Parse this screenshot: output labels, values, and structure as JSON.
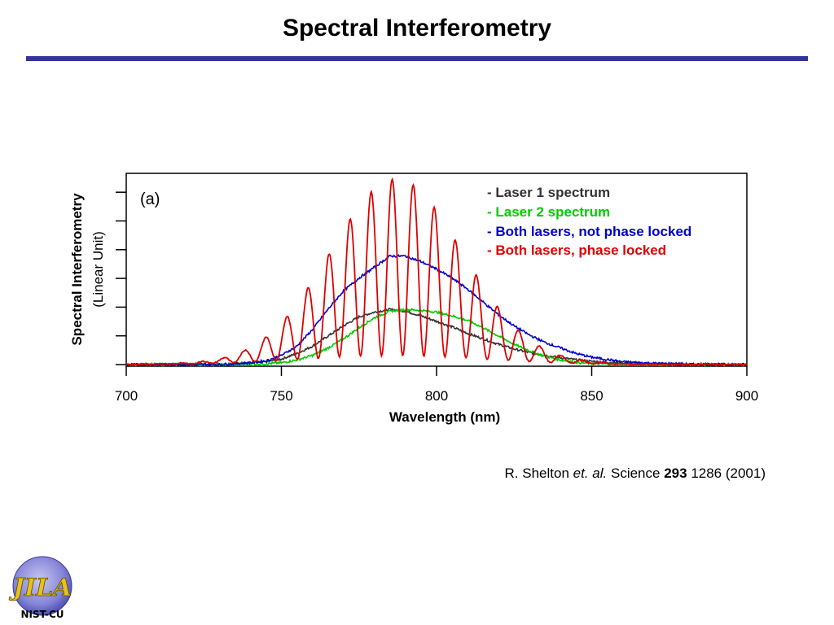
{
  "slide": {
    "title": "Spectral Interferometry",
    "accent_color": "#333399"
  },
  "chart_data": {
    "type": "line",
    "panel_label": "(a)",
    "xlabel": "Wavelength (nm)",
    "ylabel_main": "Spectral Interferometry",
    "ylabel_sub": "(Linear Unit)",
    "xlim": [
      700,
      900
    ],
    "ylim": [
      0,
      1
    ],
    "x_ticks": [
      700,
      750,
      800,
      850,
      900
    ],
    "grid": false,
    "legend_position": "top-right",
    "series": [
      {
        "name": "- Laser 1 spectrum",
        "color": "#333333",
        "x": [
          700,
          720,
          735,
          745,
          750,
          755,
          760,
          765,
          770,
          775,
          780,
          785,
          790,
          795,
          800,
          805,
          810,
          815,
          820,
          825,
          830,
          835,
          840,
          845,
          850,
          860,
          870,
          880,
          900
        ],
        "y": [
          0.0,
          0.0,
          0.005,
          0.015,
          0.03,
          0.06,
          0.1,
          0.155,
          0.21,
          0.26,
          0.285,
          0.3,
          0.29,
          0.265,
          0.235,
          0.205,
          0.17,
          0.14,
          0.11,
          0.085,
          0.065,
          0.05,
          0.037,
          0.026,
          0.018,
          0.008,
          0.004,
          0.002,
          0.0
        ]
      },
      {
        "name": "- Laser 2 spectrum",
        "color": "#00cc00",
        "x": [
          700,
          730,
          745,
          750,
          755,
          760,
          765,
          770,
          775,
          780,
          785,
          790,
          795,
          800,
          805,
          810,
          815,
          820,
          825,
          830,
          835,
          840,
          845,
          850,
          860,
          870,
          880,
          900
        ],
        "y": [
          0.0,
          0.0,
          0.005,
          0.01,
          0.025,
          0.05,
          0.09,
          0.14,
          0.2,
          0.255,
          0.29,
          0.3,
          0.295,
          0.285,
          0.265,
          0.24,
          0.2,
          0.155,
          0.11,
          0.075,
          0.045,
          0.025,
          0.012,
          0.005,
          0.002,
          0.0,
          0.0,
          0.0
        ]
      },
      {
        "name": "- Both lasers, not phase locked",
        "color": "#0000cc",
        "x": [
          700,
          730,
          740,
          745,
          750,
          755,
          760,
          765,
          770,
          775,
          780,
          785,
          790,
          795,
          800,
          805,
          810,
          815,
          820,
          825,
          830,
          835,
          840,
          845,
          850,
          860,
          870,
          880,
          900
        ],
        "y": [
          0.0,
          0.0,
          0.01,
          0.02,
          0.05,
          0.1,
          0.19,
          0.3,
          0.4,
          0.47,
          0.53,
          0.59,
          0.59,
          0.56,
          0.52,
          0.47,
          0.41,
          0.34,
          0.27,
          0.21,
          0.16,
          0.12,
          0.09,
          0.06,
          0.04,
          0.015,
          0.007,
          0.002,
          0.0
        ]
      },
      {
        "name": "- Both lasers, phase locked",
        "color": "#dd0000",
        "fringe_period_nm": 6.8,
        "fringe_center_nm": 787,
        "fringe_envelope_sigma_nm": 21,
        "fringe_peak_height": 0.96,
        "fringe_baseline_sigma_nm": 30,
        "fringe_baseline_height": 0.33
      }
    ]
  },
  "citation": {
    "author": "R. Shelton",
    "etal": "et. al.",
    "journal": "Science",
    "volume": "293",
    "rest": "1286 (2001)"
  },
  "logo": {
    "text": "NIST-CU",
    "letters": "JILA"
  }
}
